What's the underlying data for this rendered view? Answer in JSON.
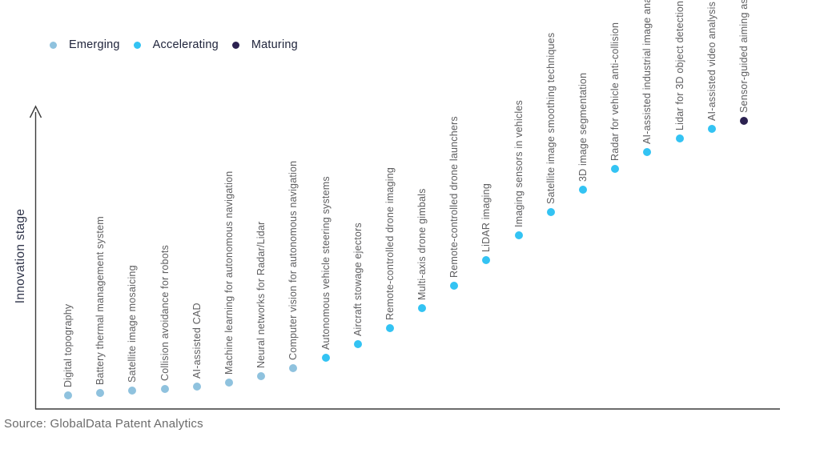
{
  "legend": [
    {
      "label": "Emerging",
      "color": "#8fc2de"
    },
    {
      "label": "Accelerating",
      "color": "#33c3f3"
    },
    {
      "label": "Maturing",
      "color": "#2b2150"
    }
  ],
  "source": "Source: GlobalData Patent Analytics",
  "chart_data": {
    "type": "scatter",
    "title": "",
    "xlabel": "",
    "ylabel": "Innovation stage",
    "legend_position": "top-left",
    "grid": false,
    "y_axis": {
      "style": "arrow-up",
      "ticks": "none",
      "range_note": "ordinal innovation stage, low to high"
    },
    "stage_colors": {
      "Emerging": "#8fc2de",
      "Accelerating": "#33c3f3",
      "Maturing": "#2b2150"
    },
    "points": [
      {
        "label": "Digital topography",
        "stage": "Emerging",
        "value": 0.046
      },
      {
        "label": "Battery thermal management system",
        "stage": "Emerging",
        "value": 0.054
      },
      {
        "label": "Satellite image mosaicing",
        "stage": "Emerging",
        "value": 0.062
      },
      {
        "label": "Collision avoidance for robots",
        "stage": "Emerging",
        "value": 0.067
      },
      {
        "label": "AI-assisted CAD",
        "stage": "Emerging",
        "value": 0.075
      },
      {
        "label": "Machine learning for autonomous navigation",
        "stage": "Emerging",
        "value": 0.089
      },
      {
        "label": "Neural networks for Radar/Lidar",
        "stage": "Emerging",
        "value": 0.111
      },
      {
        "label": "Computer vision for autonomous navigation",
        "stage": "Emerging",
        "value": 0.137
      },
      {
        "label": "Autonomous vehicle steering systems",
        "stage": "Accelerating",
        "value": 0.173
      },
      {
        "label": "Aircraft stowage ejectors",
        "stage": "Accelerating",
        "value": 0.218
      },
      {
        "label": "Remote-controlled drone imaging",
        "stage": "Accelerating",
        "value": 0.272
      },
      {
        "label": "Multi-axis drone gimbals",
        "stage": "Accelerating",
        "value": 0.34
      },
      {
        "label": "Remote-controlled drone launchers",
        "stage": "Accelerating",
        "value": 0.415
      },
      {
        "label": "LiDAR imaging",
        "stage": "Accelerating",
        "value": 0.501
      },
      {
        "label": "Imaging sensors in vehicles",
        "stage": "Accelerating",
        "value": 0.585
      },
      {
        "label": "Satellite image smoothing techniques",
        "stage": "Accelerating",
        "value": 0.663
      },
      {
        "label": "3D image segmentation",
        "stage": "Accelerating",
        "value": 0.739
      },
      {
        "label": "Radar for vehicle anti-collision",
        "stage": "Accelerating",
        "value": 0.809
      },
      {
        "label": "AI-assisted industrial image analysis",
        "stage": "Accelerating",
        "value": 0.865
      },
      {
        "label": "Lidar for 3D object detection",
        "stage": "Accelerating",
        "value": 0.911
      },
      {
        "label": "AI-assisted video analysis",
        "stage": "Accelerating",
        "value": 0.943
      },
      {
        "label": "Sensor-guided aiming assists",
        "stage": "Maturing",
        "value": 0.97
      }
    ]
  }
}
